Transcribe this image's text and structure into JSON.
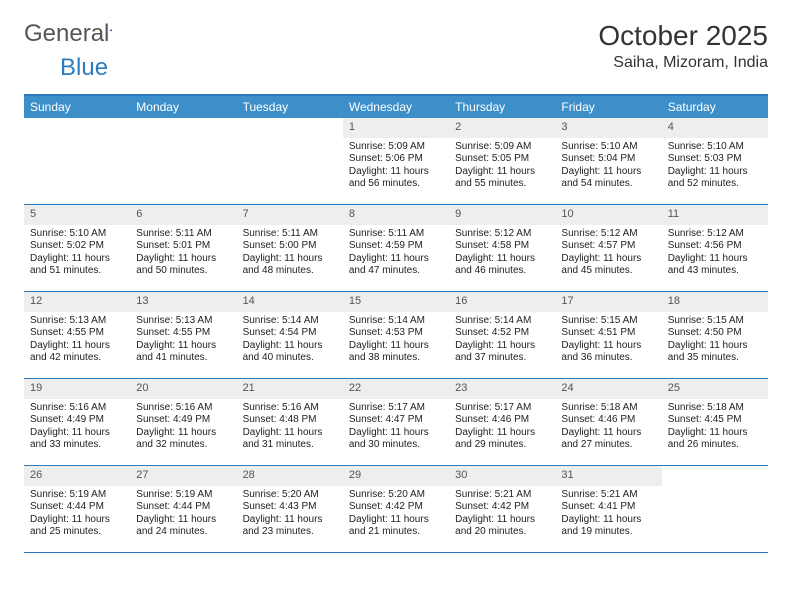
{
  "logo": {
    "part1": "General",
    "part2": "Blue"
  },
  "title": "October 2025",
  "location": "Saiha, Mizoram, India",
  "colors": {
    "header_bg": "#3d8fc9",
    "border": "#2d7cc1",
    "daynum_bg": "#eeeeee",
    "text": "#333333"
  },
  "day_labels": [
    "Sunday",
    "Monday",
    "Tuesday",
    "Wednesday",
    "Thursday",
    "Friday",
    "Saturday"
  ],
  "weeks": [
    [
      null,
      null,
      null,
      {
        "n": "1",
        "sr": "Sunrise: 5:09 AM",
        "ss": "Sunset: 5:06 PM",
        "dl": "Daylight: 11 hours and 56 minutes."
      },
      {
        "n": "2",
        "sr": "Sunrise: 5:09 AM",
        "ss": "Sunset: 5:05 PM",
        "dl": "Daylight: 11 hours and 55 minutes."
      },
      {
        "n": "3",
        "sr": "Sunrise: 5:10 AM",
        "ss": "Sunset: 5:04 PM",
        "dl": "Daylight: 11 hours and 54 minutes."
      },
      {
        "n": "4",
        "sr": "Sunrise: 5:10 AM",
        "ss": "Sunset: 5:03 PM",
        "dl": "Daylight: 11 hours and 52 minutes."
      }
    ],
    [
      {
        "n": "5",
        "sr": "Sunrise: 5:10 AM",
        "ss": "Sunset: 5:02 PM",
        "dl": "Daylight: 11 hours and 51 minutes."
      },
      {
        "n": "6",
        "sr": "Sunrise: 5:11 AM",
        "ss": "Sunset: 5:01 PM",
        "dl": "Daylight: 11 hours and 50 minutes."
      },
      {
        "n": "7",
        "sr": "Sunrise: 5:11 AM",
        "ss": "Sunset: 5:00 PM",
        "dl": "Daylight: 11 hours and 48 minutes."
      },
      {
        "n": "8",
        "sr": "Sunrise: 5:11 AM",
        "ss": "Sunset: 4:59 PM",
        "dl": "Daylight: 11 hours and 47 minutes."
      },
      {
        "n": "9",
        "sr": "Sunrise: 5:12 AM",
        "ss": "Sunset: 4:58 PM",
        "dl": "Daylight: 11 hours and 46 minutes."
      },
      {
        "n": "10",
        "sr": "Sunrise: 5:12 AM",
        "ss": "Sunset: 4:57 PM",
        "dl": "Daylight: 11 hours and 45 minutes."
      },
      {
        "n": "11",
        "sr": "Sunrise: 5:12 AM",
        "ss": "Sunset: 4:56 PM",
        "dl": "Daylight: 11 hours and 43 minutes."
      }
    ],
    [
      {
        "n": "12",
        "sr": "Sunrise: 5:13 AM",
        "ss": "Sunset: 4:55 PM",
        "dl": "Daylight: 11 hours and 42 minutes."
      },
      {
        "n": "13",
        "sr": "Sunrise: 5:13 AM",
        "ss": "Sunset: 4:55 PM",
        "dl": "Daylight: 11 hours and 41 minutes."
      },
      {
        "n": "14",
        "sr": "Sunrise: 5:14 AM",
        "ss": "Sunset: 4:54 PM",
        "dl": "Daylight: 11 hours and 40 minutes."
      },
      {
        "n": "15",
        "sr": "Sunrise: 5:14 AM",
        "ss": "Sunset: 4:53 PM",
        "dl": "Daylight: 11 hours and 38 minutes."
      },
      {
        "n": "16",
        "sr": "Sunrise: 5:14 AM",
        "ss": "Sunset: 4:52 PM",
        "dl": "Daylight: 11 hours and 37 minutes."
      },
      {
        "n": "17",
        "sr": "Sunrise: 5:15 AM",
        "ss": "Sunset: 4:51 PM",
        "dl": "Daylight: 11 hours and 36 minutes."
      },
      {
        "n": "18",
        "sr": "Sunrise: 5:15 AM",
        "ss": "Sunset: 4:50 PM",
        "dl": "Daylight: 11 hours and 35 minutes."
      }
    ],
    [
      {
        "n": "19",
        "sr": "Sunrise: 5:16 AM",
        "ss": "Sunset: 4:49 PM",
        "dl": "Daylight: 11 hours and 33 minutes."
      },
      {
        "n": "20",
        "sr": "Sunrise: 5:16 AM",
        "ss": "Sunset: 4:49 PM",
        "dl": "Daylight: 11 hours and 32 minutes."
      },
      {
        "n": "21",
        "sr": "Sunrise: 5:16 AM",
        "ss": "Sunset: 4:48 PM",
        "dl": "Daylight: 11 hours and 31 minutes."
      },
      {
        "n": "22",
        "sr": "Sunrise: 5:17 AM",
        "ss": "Sunset: 4:47 PM",
        "dl": "Daylight: 11 hours and 30 minutes."
      },
      {
        "n": "23",
        "sr": "Sunrise: 5:17 AM",
        "ss": "Sunset: 4:46 PM",
        "dl": "Daylight: 11 hours and 29 minutes."
      },
      {
        "n": "24",
        "sr": "Sunrise: 5:18 AM",
        "ss": "Sunset: 4:46 PM",
        "dl": "Daylight: 11 hours and 27 minutes."
      },
      {
        "n": "25",
        "sr": "Sunrise: 5:18 AM",
        "ss": "Sunset: 4:45 PM",
        "dl": "Daylight: 11 hours and 26 minutes."
      }
    ],
    [
      {
        "n": "26",
        "sr": "Sunrise: 5:19 AM",
        "ss": "Sunset: 4:44 PM",
        "dl": "Daylight: 11 hours and 25 minutes."
      },
      {
        "n": "27",
        "sr": "Sunrise: 5:19 AM",
        "ss": "Sunset: 4:44 PM",
        "dl": "Daylight: 11 hours and 24 minutes."
      },
      {
        "n": "28",
        "sr": "Sunrise: 5:20 AM",
        "ss": "Sunset: 4:43 PM",
        "dl": "Daylight: 11 hours and 23 minutes."
      },
      {
        "n": "29",
        "sr": "Sunrise: 5:20 AM",
        "ss": "Sunset: 4:42 PM",
        "dl": "Daylight: 11 hours and 21 minutes."
      },
      {
        "n": "30",
        "sr": "Sunrise: 5:21 AM",
        "ss": "Sunset: 4:42 PM",
        "dl": "Daylight: 11 hours and 20 minutes."
      },
      {
        "n": "31",
        "sr": "Sunrise: 5:21 AM",
        "ss": "Sunset: 4:41 PM",
        "dl": "Daylight: 11 hours and 19 minutes."
      },
      null
    ]
  ]
}
